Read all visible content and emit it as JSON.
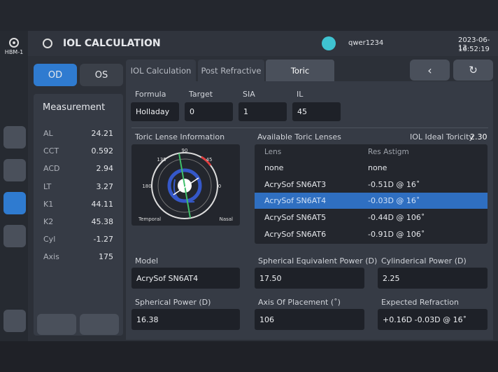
{
  "app": {
    "device": "HBM-1"
  },
  "header": {
    "title": "IOL CALCULATION",
    "user": "qwer1234",
    "date": "2023-06-13",
    "time": "16:52:19"
  },
  "eyes": [
    "OD",
    "OS"
  ],
  "tabs": [
    "IOL Calculation",
    "Post Refractive",
    "Toric"
  ],
  "measurement": {
    "title": "Measurement",
    "rows": [
      [
        "AL",
        "24.21"
      ],
      [
        "CCT",
        "0.592"
      ],
      [
        "ACD",
        "2.94"
      ],
      [
        "LT",
        "3.27"
      ],
      [
        "K1",
        "44.11"
      ],
      [
        "K2",
        "45.38"
      ],
      [
        "Cyl",
        "-1.27"
      ],
      [
        "Axis",
        "175"
      ]
    ]
  },
  "inputs": [
    {
      "label": "Formula",
      "value": "Holladay"
    },
    {
      "label": "Target",
      "value": "0"
    },
    {
      "label": "SIA",
      "value": "1"
    },
    {
      "label": "IL",
      "value": "45"
    }
  ],
  "toric_info": {
    "title": "Toric Lense Information",
    "angles": [
      "90",
      "135",
      "45",
      "180",
      "0"
    ],
    "temporal": "Temporal",
    "nasal": "Nasal"
  },
  "lenses": {
    "title": "Available Toric Lenses",
    "ideal_label": "IOL Ideal Toricity",
    "ideal_value": "2.30",
    "headers": [
      "Lens",
      "Res Astigm"
    ],
    "rows": [
      [
        "none",
        "none"
      ],
      [
        "AcrySof SN6AT3",
        "-0.51D @ 16˚"
      ],
      [
        "AcrySof SN6AT4",
        "-0.03D @ 16˚"
      ],
      [
        "AcrySof SN6AT5",
        "-0.44D @ 106˚"
      ],
      [
        "AcrySof SN6AT6",
        "-0.91D @ 106˚"
      ]
    ]
  },
  "results": [
    {
      "label": "Model",
      "value": "AcrySof SN6AT4"
    },
    {
      "label": "Spherical Equivalent Power (D)",
      "value": "17.50"
    },
    {
      "label": "Cylinderical Power (D)",
      "value": "2.25"
    },
    {
      "label": "Spherical Power (D)",
      "value": "16.38"
    },
    {
      "label": "Axis Of Placement (˚)",
      "value": "106"
    },
    {
      "label": "Expected Refraction",
      "value": "+0.16D -0.03D @ 16˚"
    }
  ]
}
